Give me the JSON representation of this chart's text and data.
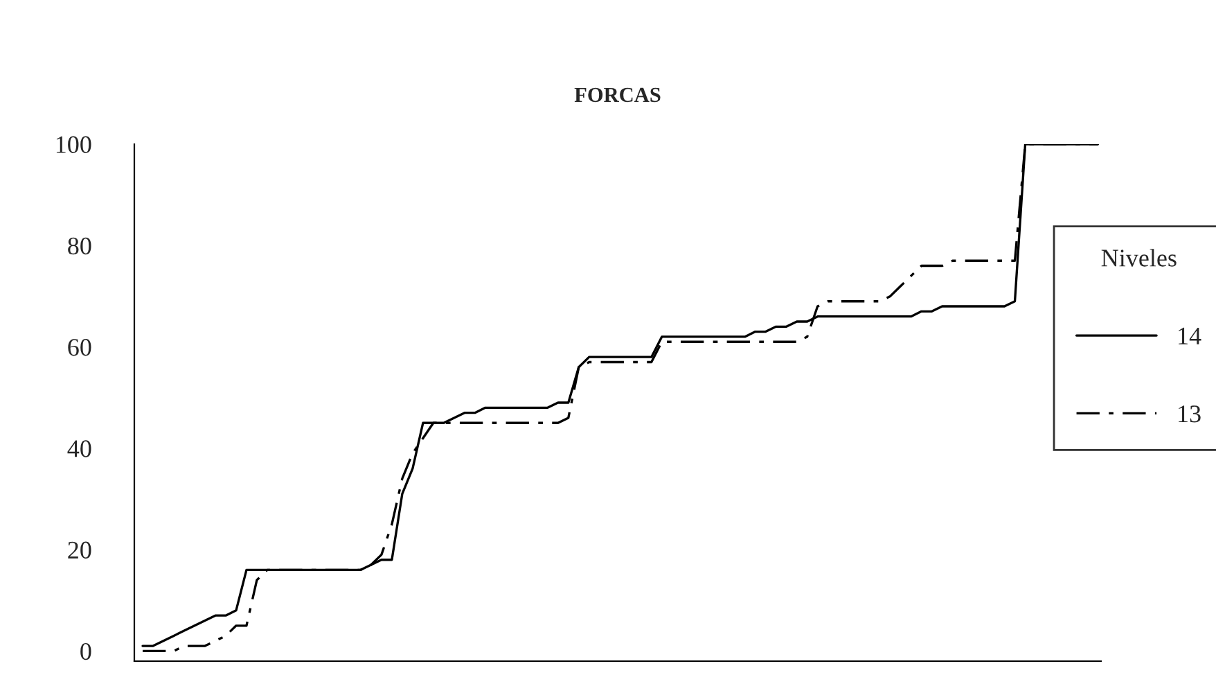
{
  "chart_data": {
    "type": "line",
    "title": "FORCAS",
    "legend_title": "Niveles",
    "legend": "right",
    "grid": false,
    "tick_labels": "y",
    "categories": [
      null,
      null,
      null,
      null,
      null,
      null,
      null,
      null,
      null,
      null,
      null,
      null,
      null,
      null,
      null,
      null,
      null,
      null,
      null,
      null,
      null,
      null,
      null,
      null,
      null,
      null,
      null,
      null,
      null,
      null,
      null,
      null,
      null,
      null,
      null,
      null,
      null,
      null,
      null,
      null,
      null,
      null,
      null,
      null,
      null,
      null,
      null,
      null,
      null,
      null,
      null,
      null,
      null,
      null,
      null,
      null,
      null,
      null,
      null,
      null,
      null,
      null,
      null,
      null,
      null,
      null,
      null,
      null,
      null,
      null,
      null,
      null,
      null,
      null,
      null,
      null,
      null,
      null,
      null,
      null,
      null,
      null,
      null,
      null,
      null,
      null,
      null,
      null,
      null,
      null,
      null,
      null,
      null
    ],
    "ylim": [
      -2,
      100
    ],
    "yticks": [
      0,
      20,
      40,
      60,
      80,
      100
    ],
    "series": [
      {
        "name": "14",
        "color": "#000000",
        "line_style": "solid",
        "values": [
          1,
          1,
          2,
          3,
          4,
          5,
          6,
          7,
          7,
          8,
          16,
          16,
          16,
          16,
          16,
          16,
          16,
          16,
          16,
          16,
          16,
          16,
          17,
          18,
          18,
          31,
          36,
          45,
          45,
          45,
          46,
          47,
          47,
          48,
          48,
          48,
          48,
          48,
          48,
          48,
          49,
          49,
          56,
          58,
          58,
          58,
          58,
          58,
          58,
          58,
          62,
          62,
          62,
          62,
          62,
          62,
          62,
          62,
          62,
          63,
          63,
          64,
          64,
          65,
          65,
          66,
          66,
          66,
          66,
          66,
          66,
          66,
          66,
          66,
          66,
          67,
          67,
          68,
          68,
          68,
          68,
          68,
          68,
          68,
          69,
          100,
          100,
          100,
          100,
          100,
          100,
          100,
          100
        ]
      },
      {
        "name": "13",
        "color": "#000000",
        "line_style": "dashdot",
        "values": [
          0,
          0,
          0,
          0,
          1,
          1,
          1,
          2,
          3,
          5,
          5,
          14,
          16,
          16,
          16,
          16,
          16,
          16,
          16,
          16,
          16,
          16,
          17,
          19,
          25,
          34,
          39,
          42,
          45,
          45,
          45,
          45,
          45,
          45,
          45,
          45,
          45,
          45,
          45,
          45,
          45,
          46,
          56,
          57,
          57,
          57,
          57,
          57,
          57,
          57,
          61,
          61,
          61,
          61,
          61,
          61,
          61,
          61,
          61,
          61,
          61,
          61,
          61,
          61,
          62,
          68,
          69,
          69,
          69,
          69,
          69,
          69,
          70,
          72,
          74,
          76,
          76,
          76,
          77,
          77,
          77,
          77,
          77,
          77,
          77,
          100,
          100,
          100,
          100,
          100,
          100,
          100,
          100
        ]
      }
    ]
  }
}
